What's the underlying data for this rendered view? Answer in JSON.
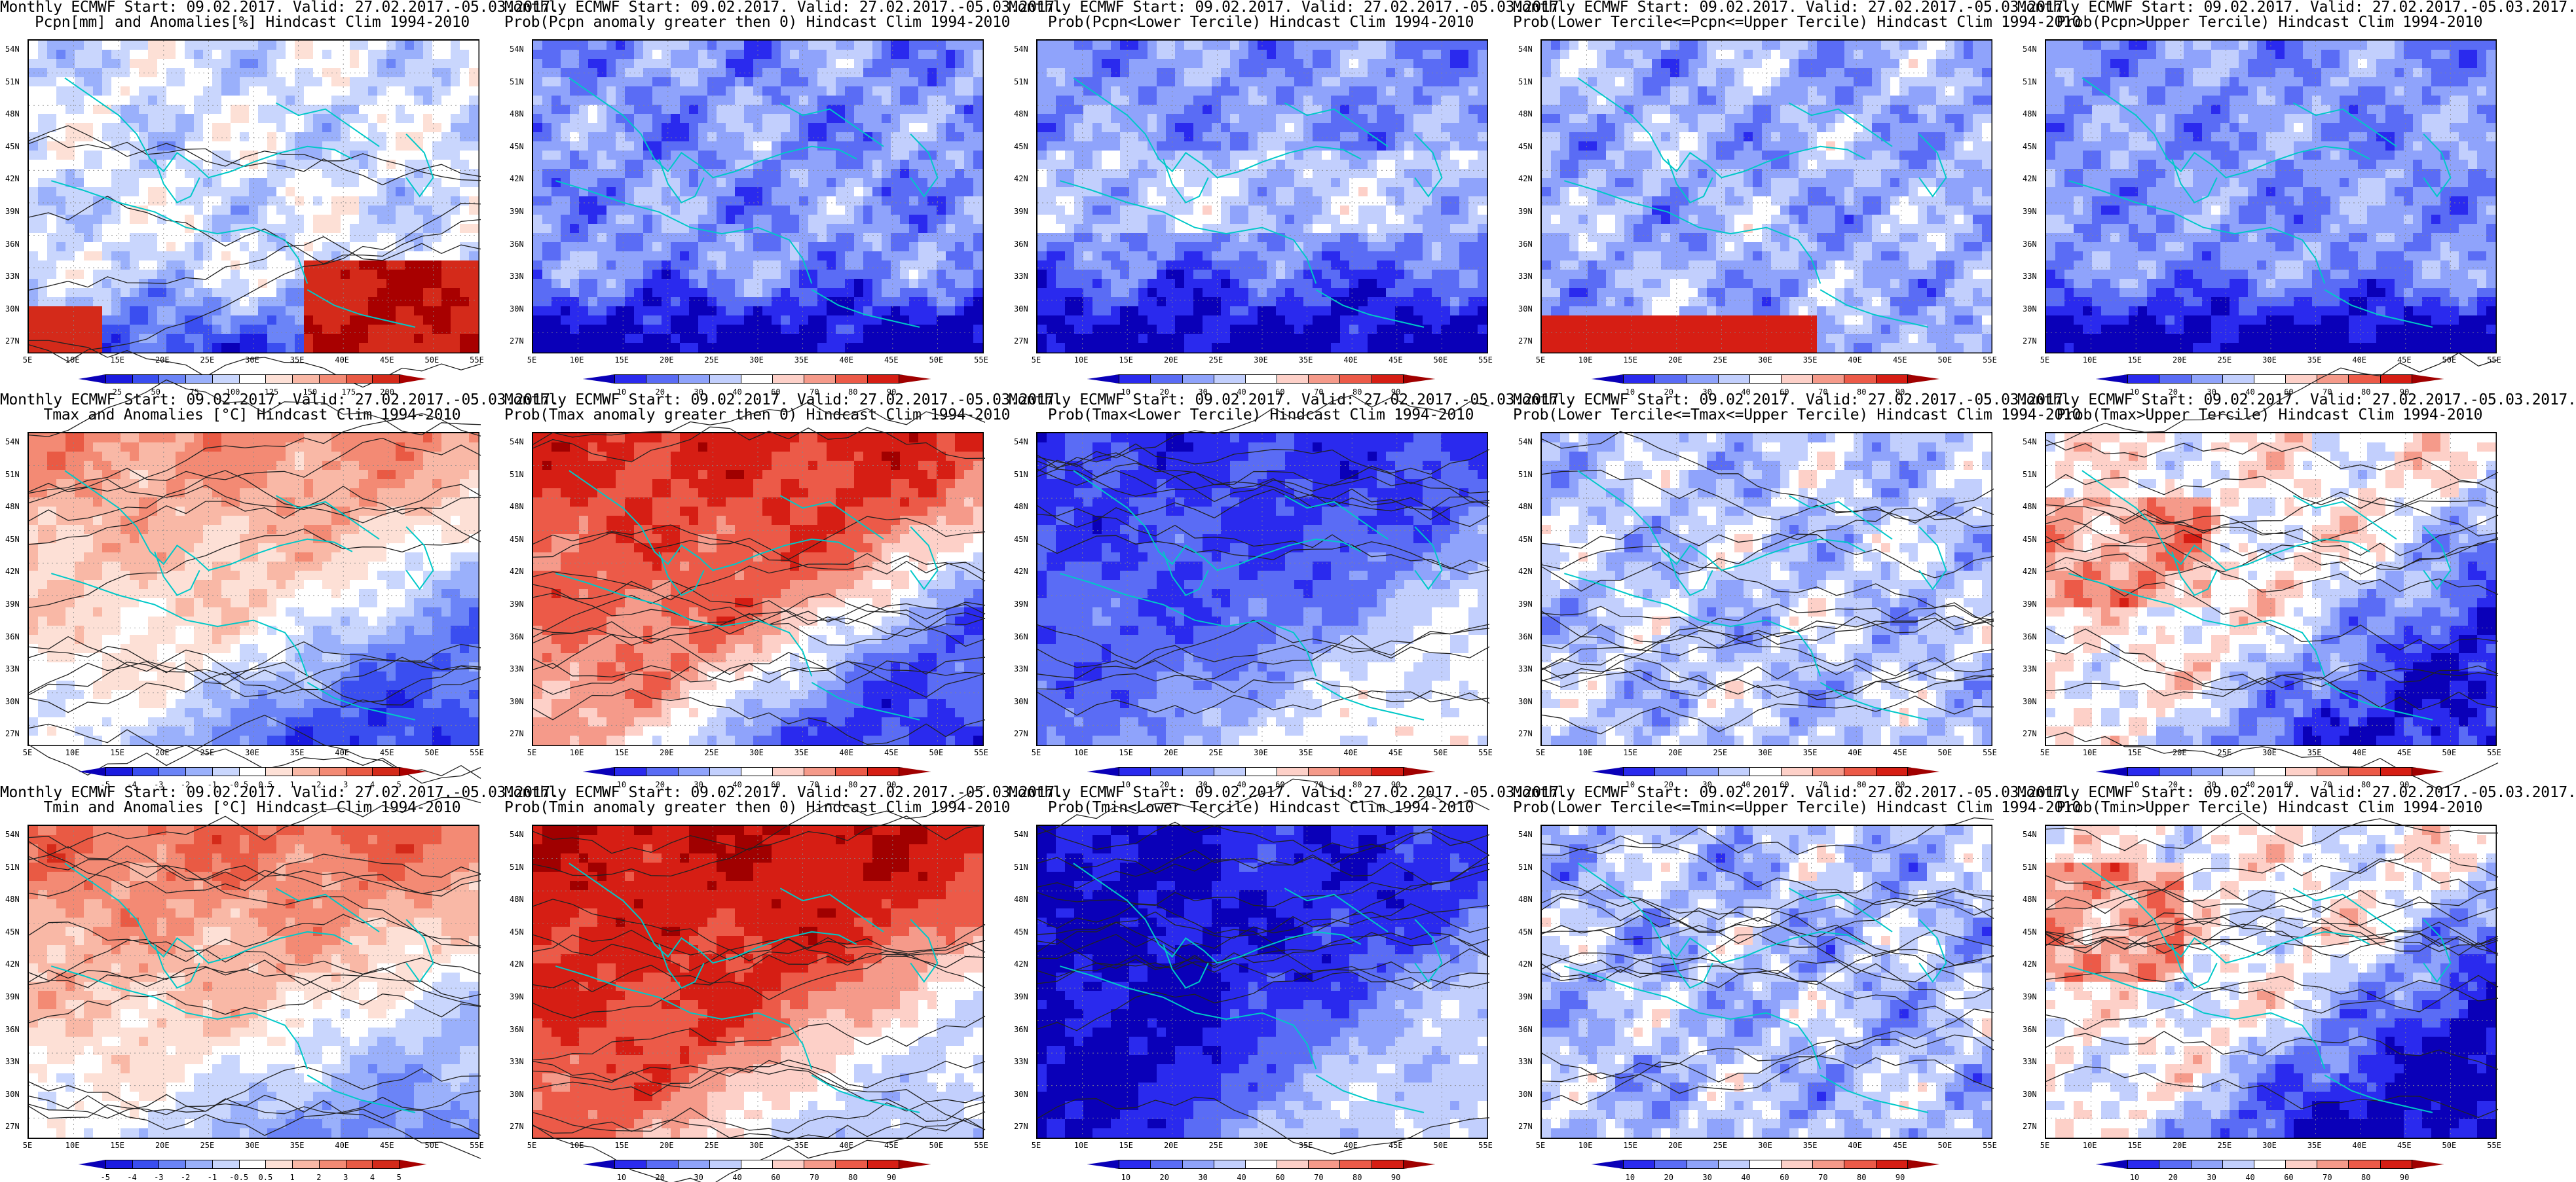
{
  "layout": {
    "rows": 3,
    "cols": 5
  },
  "map_axes": {
    "lat_labels": [
      "54N",
      "51N",
      "48N",
      "45N",
      "42N",
      "39N",
      "36N",
      "33N",
      "30N",
      "27N"
    ],
    "lon_labels": [
      "5E",
      "10E",
      "15E",
      "20E",
      "25E",
      "30E",
      "35E",
      "40E",
      "45E",
      "50E",
      "55E"
    ]
  },
  "palettes": {
    "prob": [
      "#0a00b8",
      "#2a2aee",
      "#5a6cf5",
      "#8fa3fb",
      "#c2cffd",
      "#ffffff",
      "#fdd0c8",
      "#f59a8a",
      "#ec5a48",
      "#d61e14",
      "#a00000"
    ],
    "anom": [
      "#0a00b8",
      "#1b1be0",
      "#3a4ef0",
      "#6b84f7",
      "#9ab0fb",
      "#c9d6fd",
      "#ffffff",
      "#fde0d6",
      "#f9b8a6",
      "#f38a74",
      "#e95a44",
      "#d42a1a",
      "#a80000"
    ]
  },
  "panels": [
    {
      "title_line1": "Monthly ECMWF Start: 09.02.2017. Valid: 27.02.2017.-05.03.2017.",
      "title_line2": "Pcpn[mm] and Anomalies[%]",
      "title_line2_suffix": " Hindcast Clim 1994-2010",
      "field": "pcpn_anom",
      "palette": "anom",
      "colorbar_ticks": [
        "25",
        "50",
        "75",
        "100",
        "125",
        "150",
        "175",
        "200"
      ]
    },
    {
      "title_line1": "Monthly ECMWF Start: 09.02.2017. Valid: 27.02.2017.-05.03.2017.",
      "title_line2": "Prob(Pcpn anomaly greater then 0) Hindcast Clim 1994-2010",
      "field": "pcpn_gt0",
      "palette": "prob",
      "colorbar_ticks": [
        "10",
        "20",
        "30",
        "40",
        "60",
        "70",
        "80",
        "90"
      ]
    },
    {
      "title_line1": "Monthly ECMWF Start: 09.02.2017. Valid: 27.02.2017.-05.03.2017.",
      "title_line2": "Prob(Pcpn<Lower Tercile) Hindcast Clim 1994-2010",
      "field": "pcpn_lower",
      "palette": "prob",
      "colorbar_ticks": [
        "10",
        "20",
        "30",
        "40",
        "60",
        "70",
        "80",
        "90"
      ]
    },
    {
      "title_line1": "Monthly ECMWF Start: 09.02.2017. Valid: 27.02.2017.-05.03.2017.",
      "title_line2": "Prob(Lower Tercile<=Pcpn<=Upper Tercile) Hindcast Clim 1994-2010",
      "field": "pcpn_middle",
      "palette": "prob",
      "colorbar_ticks": [
        "10",
        "20",
        "30",
        "40",
        "60",
        "70",
        "80",
        "90"
      ]
    },
    {
      "title_line1": "Monthly ECMWF Start: 09.02.2017. Valid: 27.02.2017.-05.03.2017.",
      "title_line2": "Prob(Pcpn>Upper Tercile) Hindcast Clim 1994-2010",
      "field": "pcpn_upper",
      "palette": "prob",
      "colorbar_ticks": [
        "10",
        "20",
        "30",
        "40",
        "60",
        "70",
        "80",
        "90"
      ]
    },
    {
      "title_line1": "Monthly ECMWF Start: 09.02.2017. Valid: 27.02.2017.-05.03.2017.",
      "title_line2": "Tmax and Anomalies [°C] Hindcast Clim 1994-2010",
      "field": "tmax_anom",
      "palette": "anom",
      "colorbar_ticks": [
        "-5",
        "-4",
        "-3",
        "-2",
        "-1",
        "-0.5",
        "0.5",
        "1",
        "2",
        "3",
        "4",
        "5"
      ]
    },
    {
      "title_line1": "Monthly ECMWF Start: 09.02.2017. Valid: 27.02.2017.-05.03.2017.",
      "title_line2": "Prob(Tmax anomaly greater then 0) Hindcast Clim 1994-2010",
      "field": "tmax_gt0",
      "palette": "prob",
      "colorbar_ticks": [
        "10",
        "20",
        "30",
        "40",
        "60",
        "70",
        "80",
        "90"
      ]
    },
    {
      "title_line1": "Monthly ECMWF Start: 09.02.2017. Valid: 27.02.2017.-05.03.2017.",
      "title_line2": "Prob(Tmax<Lower Tercile) Hindcast Clim 1994-2010",
      "field": "tmax_lower",
      "palette": "prob",
      "colorbar_ticks": [
        "10",
        "20",
        "30",
        "40",
        "60",
        "70",
        "80",
        "90"
      ]
    },
    {
      "title_line1": "Monthly ECMWF Start: 09.02.2017. Valid: 27.02.2017.-05.03.2017.",
      "title_line2": "Prob(Lower Tercile<=Tmax<=Upper Tercile) Hindcast Clim 1994-2010",
      "field": "tmax_middle",
      "palette": "prob",
      "colorbar_ticks": [
        "10",
        "20",
        "30",
        "40",
        "60",
        "70",
        "80",
        "90"
      ]
    },
    {
      "title_line1": "Monthly ECMWF Start: 09.02.2017. Valid: 27.02.2017.-05.03.2017.",
      "title_line2": "Prob(Tmax>Upper Tercile) Hindcast Clim 1994-2010",
      "field": "tmax_upper",
      "palette": "prob",
      "colorbar_ticks": [
        "10",
        "20",
        "30",
        "40",
        "60",
        "70",
        "80",
        "90"
      ]
    },
    {
      "title_line1": "Monthly ECMWF Start: 09.02.2017. Valid: 27.02.2017.-05.03.2017.",
      "title_line2": "Tmin and Anomalies [°C] Hindcast Clim 1994-2010",
      "field": "tmin_anom",
      "palette": "anom",
      "colorbar_ticks": [
        "-5",
        "-4",
        "-3",
        "-2",
        "-1",
        "-0.5",
        "0.5",
        "1",
        "2",
        "3",
        "4",
        "5"
      ]
    },
    {
      "title_line1": "Monthly ECMWF Start: 09.02.2017. Valid: 27.02.2017.-05.03.2017.",
      "title_line2": "Prob(Tmin anomaly greater then 0) Hindcast Clim 1994-2010",
      "field": "tmin_gt0",
      "palette": "prob",
      "colorbar_ticks": [
        "10",
        "20",
        "30",
        "40",
        "60",
        "70",
        "80",
        "90"
      ]
    },
    {
      "title_line1": "Monthly ECMWF Start: 09.02.2017. Valid: 27.02.2017.-05.03.2017.",
      "title_line2": "Prob(Tmin<Lower Tercile) Hindcast Clim 1994-2010",
      "field": "tmin_lower",
      "palette": "prob",
      "colorbar_ticks": [
        "10",
        "20",
        "30",
        "40",
        "60",
        "70",
        "80",
        "90"
      ]
    },
    {
      "title_line1": "Monthly ECMWF Start: 09.02.2017. Valid: 27.02.2017.-05.03.2017.",
      "title_line2": "Prob(Lower Tercile<=Tmin<=Upper Tercile) Hindcast Clim 1994-2010",
      "field": "tmin_middle",
      "palette": "prob",
      "colorbar_ticks": [
        "10",
        "20",
        "30",
        "40",
        "60",
        "70",
        "80",
        "90"
      ]
    },
    {
      "title_line1": "Monthly ECMWF Start: 09.02.2017. Valid: 27.02.2017.-05.03.2017.",
      "title_line2": "Prob(Tmin>Upper Tercile) Hindcast Clim 1994-2010",
      "field": "tmin_upper",
      "palette": "prob",
      "colorbar_ticks": [
        "10",
        "20",
        "30",
        "40",
        "60",
        "70",
        "80",
        "90"
      ]
    }
  ],
  "colors": {
    "coastline": "#00c8c8",
    "contour": "#222222"
  }
}
